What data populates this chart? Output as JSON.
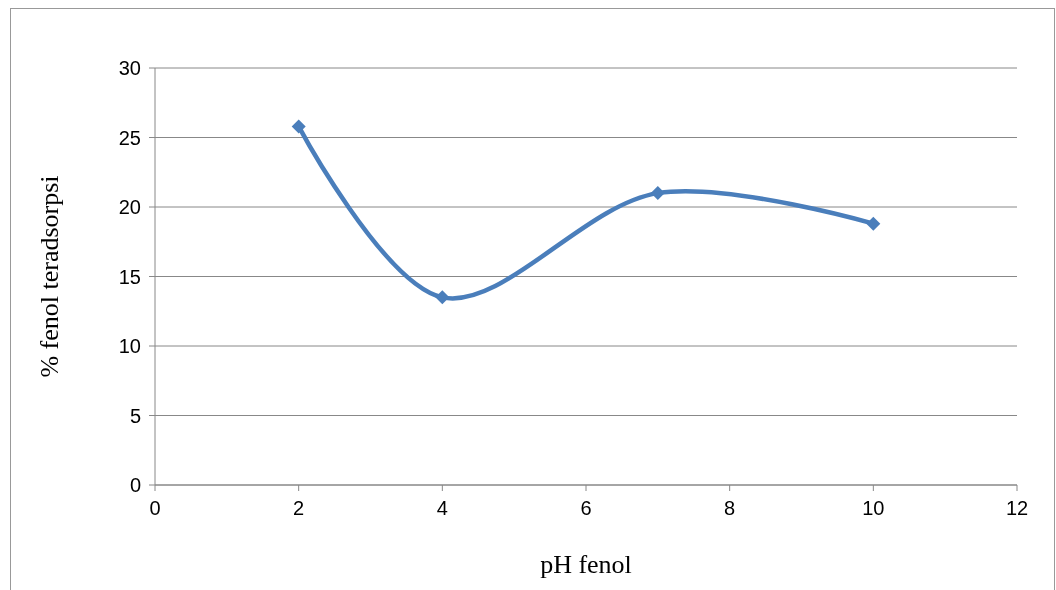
{
  "chart_data": {
    "type": "line",
    "xlabel": "pH fenol",
    "ylabel": "% fenol teradsorpsi",
    "x": [
      2,
      4,
      7,
      10
    ],
    "series": [
      {
        "color": "#4a7ebb",
        "values": [
          25.8,
          13.5,
          21.0,
          18.8
        ]
      }
    ],
    "xlim": [
      0,
      12
    ],
    "xticks": [
      0,
      2,
      4,
      6,
      8,
      10,
      12
    ],
    "ylim": [
      0,
      30
    ],
    "yticks": [
      0,
      5,
      10,
      15,
      20,
      25,
      30
    ],
    "grid": "y",
    "marker": "diamond",
    "line_style": "solid"
  }
}
